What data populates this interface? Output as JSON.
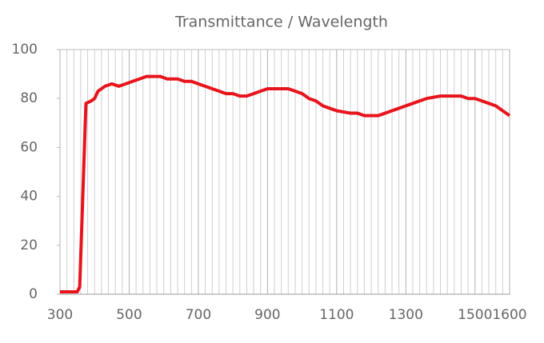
{
  "chart_data": {
    "type": "line",
    "title": "Transmittance / Wavelength",
    "x": [
      300,
      320,
      340,
      350,
      357,
      375,
      390,
      400,
      410,
      430,
      450,
      470,
      490,
      510,
      530,
      550,
      570,
      590,
      610,
      640,
      660,
      680,
      700,
      720,
      740,
      760,
      780,
      800,
      820,
      840,
      860,
      880,
      900,
      920,
      940,
      960,
      980,
      1000,
      1020,
      1040,
      1060,
      1080,
      1100,
      1140,
      1160,
      1180,
      1200,
      1220,
      1240,
      1260,
      1280,
      1300,
      1320,
      1340,
      1360,
      1400,
      1440,
      1460,
      1480,
      1500,
      1520,
      1540,
      1560,
      1580,
      1600
    ],
    "series": [
      {
        "name": "Transmittance",
        "color": "#e8141c",
        "values": [
          1,
          1,
          1,
          1,
          3,
          78,
          79,
          80,
          83,
          85,
          86,
          85,
          86,
          87,
          88,
          89,
          89,
          89,
          88,
          88,
          87,
          87,
          86,
          85,
          84,
          83,
          82,
          82,
          81,
          81,
          82,
          83,
          84,
          84,
          84,
          84,
          83,
          82,
          80,
          79,
          77,
          76,
          75,
          74,
          74,
          73,
          73,
          73,
          74,
          75,
          76,
          77,
          78,
          79,
          80,
          81,
          81,
          81,
          80,
          80,
          79,
          78,
          77,
          75,
          73
        ]
      }
    ],
    "xlim": [
      300,
      1600
    ],
    "xticks": [
      300,
      500,
      700,
      900,
      1100,
      1300,
      1500,
      1600
    ],
    "minor_xticks": [
      320,
      340,
      360,
      380,
      400,
      420,
      440,
      460,
      480,
      520,
      540,
      560,
      580,
      600,
      620,
      640,
      660,
      680,
      720,
      740,
      760,
      780,
      800,
      820,
      840,
      860,
      880,
      920,
      940,
      960,
      980,
      1000,
      1020,
      1040,
      1060,
      1080,
      1120,
      1140,
      1160,
      1180,
      1200,
      1220,
      1240,
      1260,
      1280,
      1320,
      1340,
      1360,
      1380,
      1400,
      1420,
      1440,
      1460,
      1480,
      1520,
      1540,
      1560,
      1580
    ],
    "ylim": [
      0,
      100
    ],
    "yticks": [
      0,
      20,
      40,
      60,
      80,
      100
    ],
    "grid": true
  }
}
